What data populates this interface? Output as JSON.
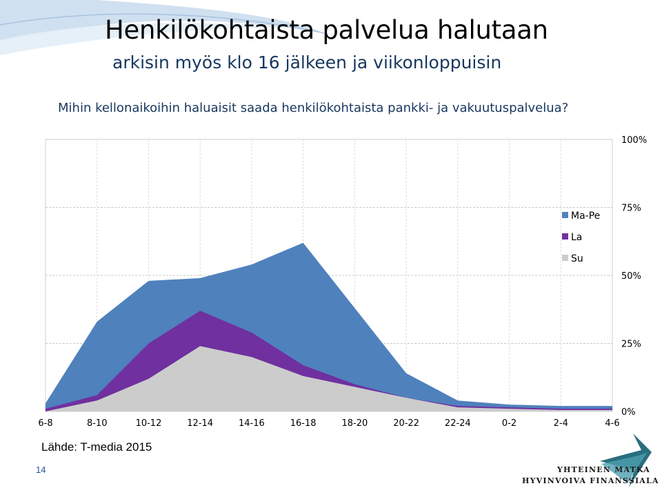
{
  "header": {
    "title": "Henkilökohtaista palvelua halutaan",
    "subtitle": "arkisin myös klo 16 jälkeen ja viikonloppuisin",
    "question": "Mihin kellonaikoihin haluaisit saada henkilökohtaista pankki- ja vakuutuspalvelua?"
  },
  "footer": {
    "source": "Lähde: T-media 2015",
    "page_number": "14",
    "logo_line1": "YHTEINEN MATKA",
    "logo_line2": "HYVINVOIVA FINANSSIALA"
  },
  "colors": {
    "ma_pe": "#4f81bd",
    "la": "#7030a0",
    "su": "#cccccc",
    "text_blue": "#17375e"
  },
  "chart_data": {
    "type": "area",
    "categories": [
      "6-8",
      "8-10",
      "10-12",
      "12-14",
      "14-16",
      "16-18",
      "18-20",
      "20-22",
      "22-24",
      "0-2",
      "2-4",
      "4-6"
    ],
    "series": [
      {
        "name": "Ma-Pe",
        "color": "#4f81bd",
        "values": [
          3,
          33,
          48,
          49,
          54,
          62,
          38,
          14,
          4,
          2.5,
          2,
          2
        ]
      },
      {
        "name": "La",
        "color": "#7030a0",
        "values": [
          1,
          6,
          25,
          37,
          29,
          17,
          10,
          5,
          2,
          1.5,
          1,
          1
        ]
      },
      {
        "name": "Su",
        "color": "#cccccc",
        "values": [
          0,
          4,
          12,
          24,
          20,
          13,
          9,
          5,
          1.5,
          1,
          0.5,
          0.5
        ]
      }
    ],
    "y_ticks": [
      "0%",
      "25%",
      "50%",
      "75%",
      "100%"
    ],
    "ylim": [
      0,
      100
    ],
    "grid": true,
    "legend_position": "right"
  }
}
